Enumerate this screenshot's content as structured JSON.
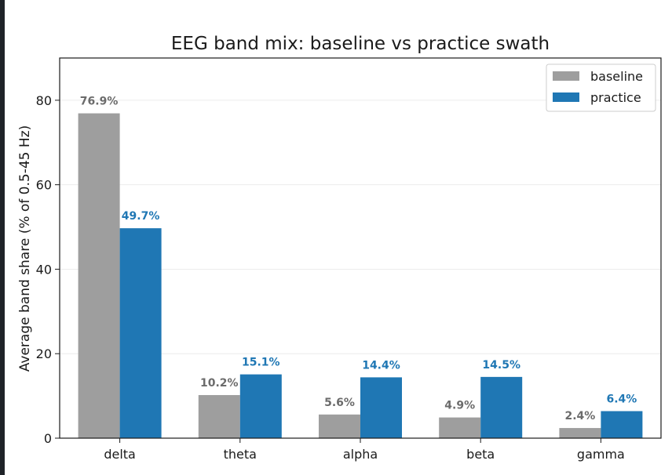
{
  "chart_data": {
    "type": "bar",
    "title": "EEG band mix: baseline vs practice swath",
    "xlabel": "",
    "ylabel": "Average band share (% of 0.5-45 Hz)",
    "categories": [
      "delta",
      "theta",
      "alpha",
      "beta",
      "gamma"
    ],
    "ylim": [
      0,
      90
    ],
    "yticks": [
      0,
      20,
      40,
      60,
      80
    ],
    "grid": "horizontal",
    "legend_position": "top-right",
    "series": [
      {
        "name": "baseline",
        "color": "#9e9e9e",
        "label_color": "#6b6b6b",
        "values": [
          76.9,
          10.2,
          5.6,
          4.9,
          2.4
        ],
        "labels": [
          "76.9%",
          "10.2%",
          "5.6%",
          "4.9%",
          "2.4%"
        ]
      },
      {
        "name": "practice",
        "color": "#1f77b4",
        "label_color": "#1f77b4",
        "values": [
          49.7,
          15.1,
          14.4,
          14.5,
          6.4
        ],
        "labels": [
          "49.7%",
          "15.1%",
          "14.4%",
          "14.5%",
          "6.4%"
        ]
      }
    ]
  }
}
